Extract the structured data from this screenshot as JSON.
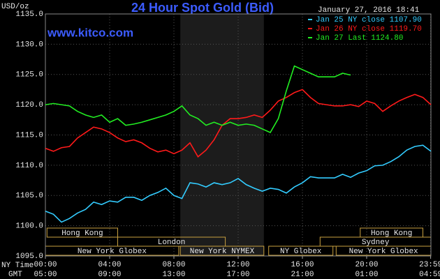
{
  "chart_data": {
    "type": "line",
    "title": "24 Hour Spot Gold (Bid)",
    "website": "www.kitco.com",
    "y_label": "USD/oz",
    "timestamp": "January 27, 2016 18:41",
    "x_row_labels": [
      "NY Time",
      "GMT"
    ],
    "x": [
      0,
      0.5,
      1,
      1.5,
      2,
      2.5,
      3,
      3.5,
      4,
      4.5,
      5,
      5.5,
      6,
      6.5,
      7,
      7.5,
      8,
      8.5,
      9,
      9.5,
      10,
      10.5,
      11,
      11.5,
      12,
      12.5,
      13,
      13.5,
      14,
      14.5,
      15,
      15.5,
      16,
      16.5,
      17,
      17.5,
      18,
      18.5,
      19,
      19.5,
      20,
      20.5,
      21,
      21.5,
      22,
      22.5,
      23,
      23.5,
      24
    ],
    "series": [
      {
        "name": "Jan 25 NY close 1107.90",
        "color": "#33ccff",
        "values": [
          1102.4,
          1101.9,
          1100.6,
          1101.2,
          1102.1,
          1102.7,
          1103.9,
          1103.5,
          1104.1,
          1103.9,
          1104.7,
          1104.7,
          1104.2,
          1105.0,
          1105.5,
          1106.2,
          1105.0,
          1104.5,
          1107.1,
          1106.9,
          1106.4,
          1107.1,
          1106.8,
          1107.1,
          1107.8,
          1106.8,
          1106.2,
          1105.7,
          1106.2,
          1106.0,
          1105.4,
          1106.4,
          1107.1,
          1108.1,
          1107.9,
          1107.9,
          1107.9,
          1108.5,
          1108.0,
          1108.7,
          1109.1,
          1109.9,
          1110.0,
          1110.6,
          1111.4,
          1112.5,
          1113.1,
          1113.3,
          1112.3
        ]
      },
      {
        "name": "Jan 26 NY close 1119.70",
        "color": "#ff1a1a",
        "values": [
          1112.8,
          1112.3,
          1112.9,
          1113.1,
          1114.5,
          1115.4,
          1116.3,
          1116.0,
          1115.4,
          1114.5,
          1113.9,
          1114.2,
          1113.7,
          1112.8,
          1112.2,
          1112.5,
          1111.9,
          1112.5,
          1113.7,
          1111.4,
          1112.5,
          1114.2,
          1116.6,
          1117.7,
          1117.7,
          1117.9,
          1118.3,
          1117.9,
          1119.1,
          1120.6,
          1121.2,
          1122.0,
          1122.5,
          1121.2,
          1120.2,
          1120.0,
          1119.8,
          1119.8,
          1120.0,
          1119.7,
          1120.6,
          1120.2,
          1118.9,
          1119.8,
          1120.6,
          1121.2,
          1121.7,
          1121.2,
          1120.0
        ]
      },
      {
        "name": "Jan 27 Last 1124.80",
        "color": "#22ee22",
        "values": [
          1120.0,
          1120.2,
          1120.0,
          1119.8,
          1118.9,
          1118.3,
          1117.9,
          1118.3,
          1117.1,
          1117.7,
          1116.6,
          1116.8,
          1117.1,
          1117.5,
          1117.9,
          1118.3,
          1118.9,
          1119.8,
          1118.3,
          1117.7,
          1116.6,
          1117.1,
          1116.6,
          1117.1,
          1116.6,
          1116.8,
          1116.6,
          1116.0,
          1115.4,
          1117.7,
          1122.3,
          1126.4,
          1125.8,
          1125.2,
          1124.6,
          1124.6,
          1124.6,
          1125.2,
          1124.9,
          null,
          null,
          null,
          null,
          null,
          null,
          null,
          null,
          null,
          null
        ]
      }
    ],
    "xlim": [
      0,
      24
    ],
    "ylim": [
      1095,
      1135
    ],
    "xticks": [
      {
        "value": 0,
        "label": "00:00"
      },
      {
        "value": 4,
        "label": "04:00"
      },
      {
        "value": 8,
        "label": "08:00"
      },
      {
        "value": 12,
        "label": "12:00"
      },
      {
        "value": 16,
        "label": "16:00"
      },
      {
        "value": 20,
        "label": "20:00"
      },
      {
        "value": 23.983,
        "label": "23:59"
      }
    ],
    "x2ticks": [
      {
        "value": 0,
        "label": "05:00"
      },
      {
        "value": 4,
        "label": "09:00"
      },
      {
        "value": 8,
        "label": "13:00"
      },
      {
        "value": 12,
        "label": "17:00"
      },
      {
        "value": 16,
        "label": "21:00"
      },
      {
        "value": 20,
        "label": "01:00"
      },
      {
        "value": 23.983,
        "label": "04:59"
      }
    ],
    "yticks": [
      {
        "value": 1095,
        "label": "1095.0"
      },
      {
        "value": 1100,
        "label": "1100.0"
      },
      {
        "value": 1105,
        "label": "1105.0"
      },
      {
        "value": 1110,
        "label": "1110.0"
      },
      {
        "value": 1115,
        "label": "1115.0"
      },
      {
        "value": 1120,
        "label": "1120.0"
      },
      {
        "value": 1125,
        "label": "1125.0"
      },
      {
        "value": 1130,
        "label": "1130.0"
      },
      {
        "value": 1135,
        "label": "1135.0"
      }
    ],
    "grid": true,
    "shade": [
      8.4,
      13.6
    ],
    "sessions": [
      [
        {
          "label": "Hong Kong",
          "start": 0.1,
          "end": 4.5
        },
        {
          "label": "Hong Kong",
          "start": 19.6,
          "end": 23.5
        }
      ],
      [
        {
          "label": "London",
          "start": 4.5,
          "end": 11.2
        },
        {
          "label": "Sydney",
          "start": 17.1,
          "end": 24
        }
      ],
      [
        {
          "label": "New York Globex",
          "start": 0,
          "end": 8.3
        },
        {
          "label": "New York NYMEX",
          "start": 8.4,
          "end": 13.6
        },
        {
          "label": "NY Globex",
          "start": 13.9,
          "end": 17.9
        },
        {
          "label": "New York Globex",
          "start": 18.1,
          "end": 24
        }
      ]
    ]
  }
}
